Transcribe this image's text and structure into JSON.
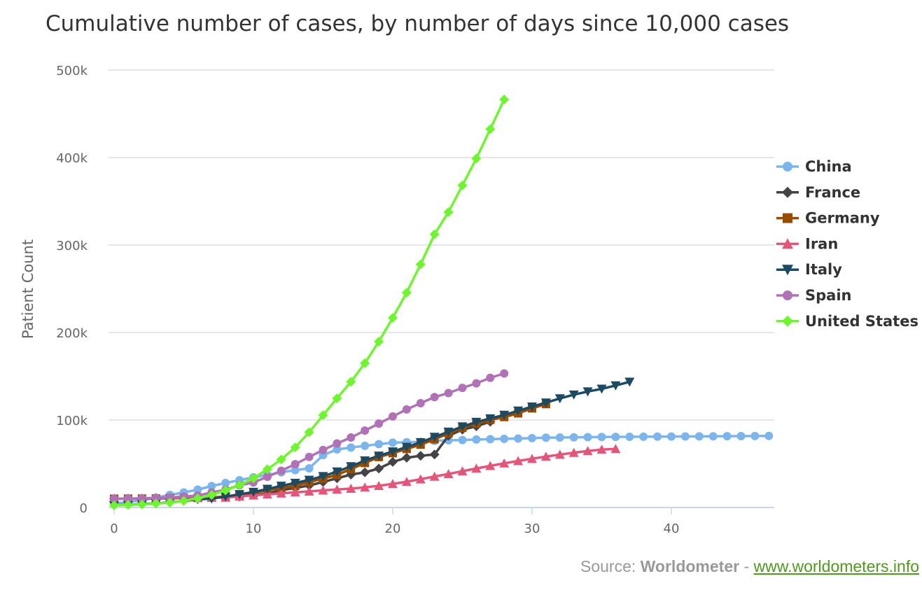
{
  "source": {
    "prefix": "Source: ",
    "name": "Worldometer",
    "separator": " - ",
    "link_text": "www.worldometers.info"
  },
  "chart_data": {
    "type": "line",
    "title": "Cumulative number of cases, by number of days since 10,000 cases",
    "xlabel": "",
    "ylabel": "Patient Count",
    "xlim": [
      0,
      47
    ],
    "ylim": [
      0,
      500000
    ],
    "x_ticks": [
      0,
      10,
      20,
      30,
      40
    ],
    "y_ticks": [
      0,
      100000,
      200000,
      300000,
      400000,
      500000
    ],
    "y_tick_labels": [
      "0",
      "100k",
      "200k",
      "300k",
      "400k",
      "500k"
    ],
    "grid": true,
    "legend_position": "right",
    "series": [
      {
        "name": "China",
        "color": "#7cb5ec",
        "marker": "circle",
        "values": [
          4500,
          6100,
          8300,
          11300,
          14400,
          17200,
          20400,
          24500,
          28000,
          31200,
          34500,
          37100,
          40200,
          42700,
          44700,
          59800,
          66400,
          68500,
          70500,
          72400,
          74100,
          74600,
          75100,
          76200,
          76800,
          77100,
          77700,
          78100,
          78500,
          78800,
          79300,
          79800,
          80000,
          80200,
          80400,
          80600,
          80700,
          80800,
          80900,
          81000,
          81100,
          81200,
          81300,
          81400,
          81500,
          81600,
          81700,
          81800
        ]
      },
      {
        "name": "France",
        "color": "#434348",
        "marker": "diamond",
        "values": [
          10000,
          10100,
          10200,
          10300,
          10500,
          10700,
          11000,
          11500,
          12000,
          12500,
          14400,
          16000,
          19900,
          22300,
          25200,
          29200,
          33400,
          37600,
          40200,
          44500,
          52100,
          56900,
          59100,
          60600,
          82000,
          89000,
          92800,
          98000
        ]
      },
      {
        "name": "Germany",
        "color": "#994c00",
        "marker": "square",
        "values": [
          10000,
          10100,
          10200,
          10300,
          10500,
          10700,
          11000,
          11500,
          12500,
          13500,
          16700,
          19800,
          22200,
          24800,
          29100,
          33000,
          37300,
          43900,
          50900,
          57700,
          62100,
          66900,
          71800,
          77900,
          84800,
          91100,
          96100,
          100100,
          103400,
          107600,
          113300,
          118200
        ]
      },
      {
        "name": "Iran",
        "color": "#e4557c",
        "marker": "triangle-up",
        "values": [
          10000,
          10100,
          10200,
          10300,
          10500,
          10700,
          11000,
          11300,
          11364,
          12729,
          13938,
          14991,
          16169,
          17361,
          18407,
          19644,
          20610,
          21638,
          23049,
          24811,
          27017,
          29406,
          32332,
          35408,
          38309,
          41495,
          44605,
          47593,
          50468,
          53183,
          55743,
          58226,
          60500,
          62589,
          64586,
          66220,
          67000
        ]
      },
      {
        "name": "Italy",
        "color": "#1c4a63",
        "marker": "triangle-down",
        "values": [
          2500,
          3000,
          3858,
          4636,
          5883,
          7375,
          9172,
          10149,
          12462,
          15113,
          17660,
          21157,
          24747,
          27980,
          31506,
          35713,
          41035,
          47021,
          53578,
          59138,
          63927,
          69176,
          74386,
          80589,
          86498,
          92472,
          97689,
          101739,
          105792,
          110574,
          115242,
          119827,
          124632,
          128948,
          132547,
          135586,
          139422,
          143626
        ]
      },
      {
        "name": "Spain",
        "color": "#b071b6",
        "marker": "circle",
        "values": [
          10000,
          10200,
          10500,
          11000,
          11500,
          12500,
          13700,
          17100,
          20400,
          25400,
          28600,
          35100,
          42000,
          49500,
          57800,
          65700,
          73200,
          80000,
          87900,
          95900,
          104100,
          112100,
          119200,
          126200,
          130800,
          136700,
          141900,
          148200,
          153200
        ]
      },
      {
        "name": "United States",
        "color": "#6ff52f",
        "marker": "diamond",
        "values": [
          2500,
          3000,
          3500,
          4500,
          5500,
          7500,
          10400,
          14300,
          19600,
          25500,
          33300,
          43700,
          54900,
          68700,
          86000,
          105500,
          124700,
          143700,
          164900,
          189600,
          216700,
          245500,
          277900,
          312200,
          337600,
          368100,
          398800,
          432400,
          466300
        ]
      }
    ]
  }
}
